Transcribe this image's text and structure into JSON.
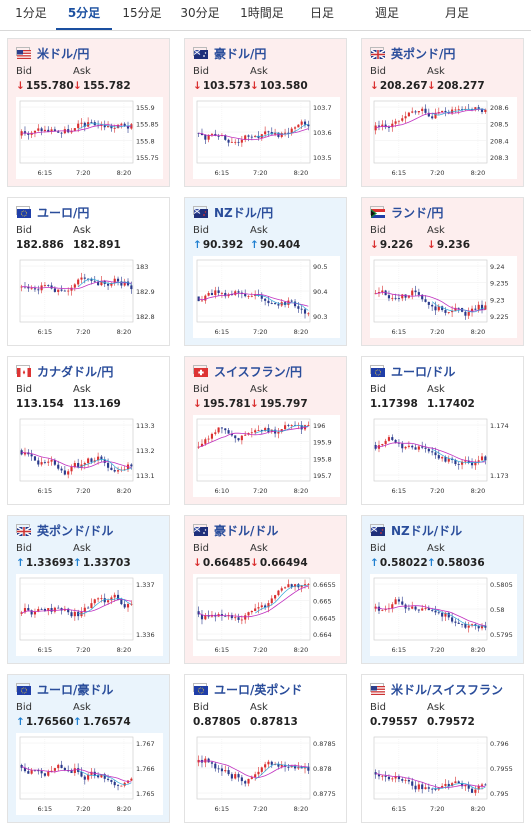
{
  "tabs": [
    "1分足",
    "5分足",
    "15分足",
    "30分足",
    "1時間足",
    "日足",
    "週足",
    "月足"
  ],
  "active_tab": 1,
  "labels": {
    "bid": "Bid",
    "ask": "Ask"
  },
  "colors": {
    "down_bg": "#fdeeee",
    "up_bg": "#eaf4fc",
    "down": "#d93030",
    "up": "#1f7fd0",
    "candle_up": "#d93030",
    "candle_down": "#2a3a8c",
    "ma": "#c030c0",
    "ma2": "#30a8d8"
  },
  "cards": [
    {
      "name": "米ドル/円",
      "flag": "us",
      "bid": "155.780",
      "ask": "155.782",
      "dir": "down",
      "times": [
        "6:15",
        "7:20",
        "8:20"
      ],
      "yticks": [
        "155.9",
        "155.85",
        "155.8",
        "155.75"
      ]
    },
    {
      "name": "豪ドル/円",
      "flag": "au",
      "bid": "103.573",
      "ask": "103.580",
      "dir": "down",
      "times": [
        "6:15",
        "7:20",
        "8:20"
      ],
      "yticks": [
        "103.7",
        "103.6",
        "103.5"
      ]
    },
    {
      "name": "英ポンド/円",
      "flag": "uk",
      "bid": "208.267",
      "ask": "208.277",
      "dir": "down",
      "times": [
        "6:15",
        "7:20",
        "8:20"
      ],
      "yticks": [
        "208.6",
        "208.5",
        "208.4",
        "208.3"
      ]
    },
    {
      "name": "ユーロ/円",
      "flag": "eu",
      "bid": "182.886",
      "ask": "182.891",
      "dir": "flat",
      "times": [
        "6:15",
        "7:20",
        "8:20"
      ],
      "yticks": [
        "183",
        "182.9",
        "182.8"
      ]
    },
    {
      "name": "NZドル/円",
      "flag": "nz",
      "bid": "90.392",
      "ask": "90.404",
      "dir": "up",
      "times": [
        "6:15",
        "7:20",
        "8:20"
      ],
      "yticks": [
        "90.5",
        "90.4",
        "90.3"
      ]
    },
    {
      "name": "ランド/円",
      "flag": "za",
      "bid": "9.226",
      "ask": "9.236",
      "dir": "down",
      "times": [
        "6:15",
        "7:20",
        "8:20"
      ],
      "yticks": [
        "9.24",
        "9.235",
        "9.23",
        "9.225"
      ]
    },
    {
      "name": "カナダドル/円",
      "flag": "ca",
      "bid": "113.154",
      "ask": "113.169",
      "dir": "flat",
      "times": [
        "6:15",
        "7:20",
        "8:20"
      ],
      "yticks": [
        "113.3",
        "113.2",
        "113.1"
      ]
    },
    {
      "name": "スイスフラン/円",
      "flag": "ch",
      "bid": "195.781",
      "ask": "195.797",
      "dir": "down",
      "times": [
        "6:10",
        "7:20",
        "8:20"
      ],
      "yticks": [
        "196",
        "195.9",
        "195.8",
        "195.7"
      ]
    },
    {
      "name": "ユーロ/ドル",
      "flag": "eu",
      "bid": "1.17398",
      "ask": "1.17402",
      "dir": "flat",
      "times": [
        "6:15",
        "7:20",
        "8:20"
      ],
      "yticks": [
        "1.174",
        "1.173"
      ]
    },
    {
      "name": "英ポンド/ドル",
      "flag": "uk",
      "bid": "1.33693",
      "ask": "1.33703",
      "dir": "up",
      "times": [
        "6:15",
        "7:20",
        "8:20"
      ],
      "yticks": [
        "1.337",
        "1.336"
      ]
    },
    {
      "name": "豪ドル/ドル",
      "flag": "au",
      "bid": "0.66485",
      "ask": "0.66494",
      "dir": "down",
      "times": [
        "6:15",
        "7:20",
        "8:20"
      ],
      "yticks": [
        "0.6655",
        "0.665",
        "0.6645",
        "0.664"
      ]
    },
    {
      "name": "NZドル/ドル",
      "flag": "nz",
      "bid": "0.58022",
      "ask": "0.58036",
      "dir": "up",
      "times": [
        "6:15",
        "7:20",
        "8:20"
      ],
      "yticks": [
        "0.5805",
        "0.58",
        "0.5795"
      ]
    },
    {
      "name": "ユーロ/豪ドル",
      "flag": "eu",
      "bid": "1.76560",
      "ask": "1.76574",
      "dir": "up",
      "times": [
        "6:15",
        "7:20",
        "8:20"
      ],
      "yticks": [
        "1.767",
        "1.766",
        "1.765"
      ]
    },
    {
      "name": "ユーロ/英ポンド",
      "flag": "eu",
      "bid": "0.87805",
      "ask": "0.87813",
      "dir": "flat",
      "times": [
        "6:15",
        "7:20",
        "8:20"
      ],
      "yticks": [
        "0.8785",
        "0.878",
        "0.8775"
      ]
    },
    {
      "name": "米ドル/スイスフラン",
      "flag": "us",
      "bid": "0.79557",
      "ask": "0.79572",
      "dir": "flat",
      "times": [
        "6:15",
        "7:20",
        "8:20"
      ],
      "yticks": [
        "0.796",
        "0.7955",
        "0.795"
      ]
    }
  ]
}
